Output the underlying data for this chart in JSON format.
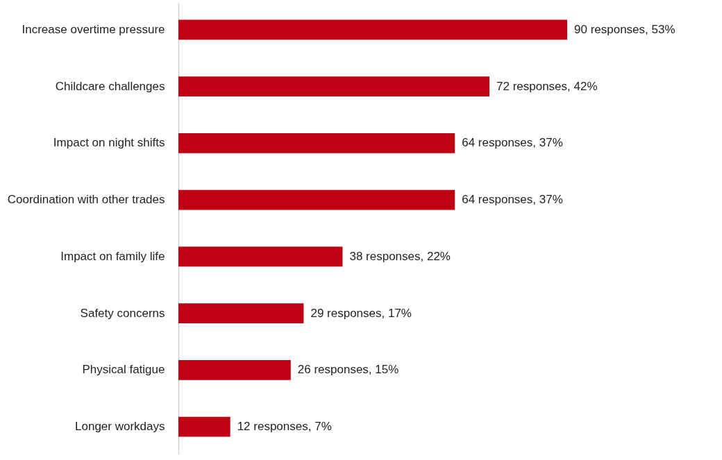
{
  "chart_data": {
    "type": "bar",
    "orientation": "horizontal",
    "categories": [
      "Increase overtime pressure",
      "Childcare challenges",
      "Impact on night shifts",
      "Coordination with other trades",
      "Impact on family life",
      "Safety concerns",
      "Physical fatigue",
      "Longer workdays"
    ],
    "values": [
      90,
      72,
      64,
      64,
      38,
      29,
      26,
      12
    ],
    "value_labels": [
      "90 responses, 53%",
      "72 responses, 42%",
      "64 responses, 37%",
      "64 responses, 37%",
      "38 responses, 22%",
      "29 responses, 17%",
      "26 responses, 15%",
      "12 responses, 7%"
    ],
    "color": "#c00012"
  }
}
